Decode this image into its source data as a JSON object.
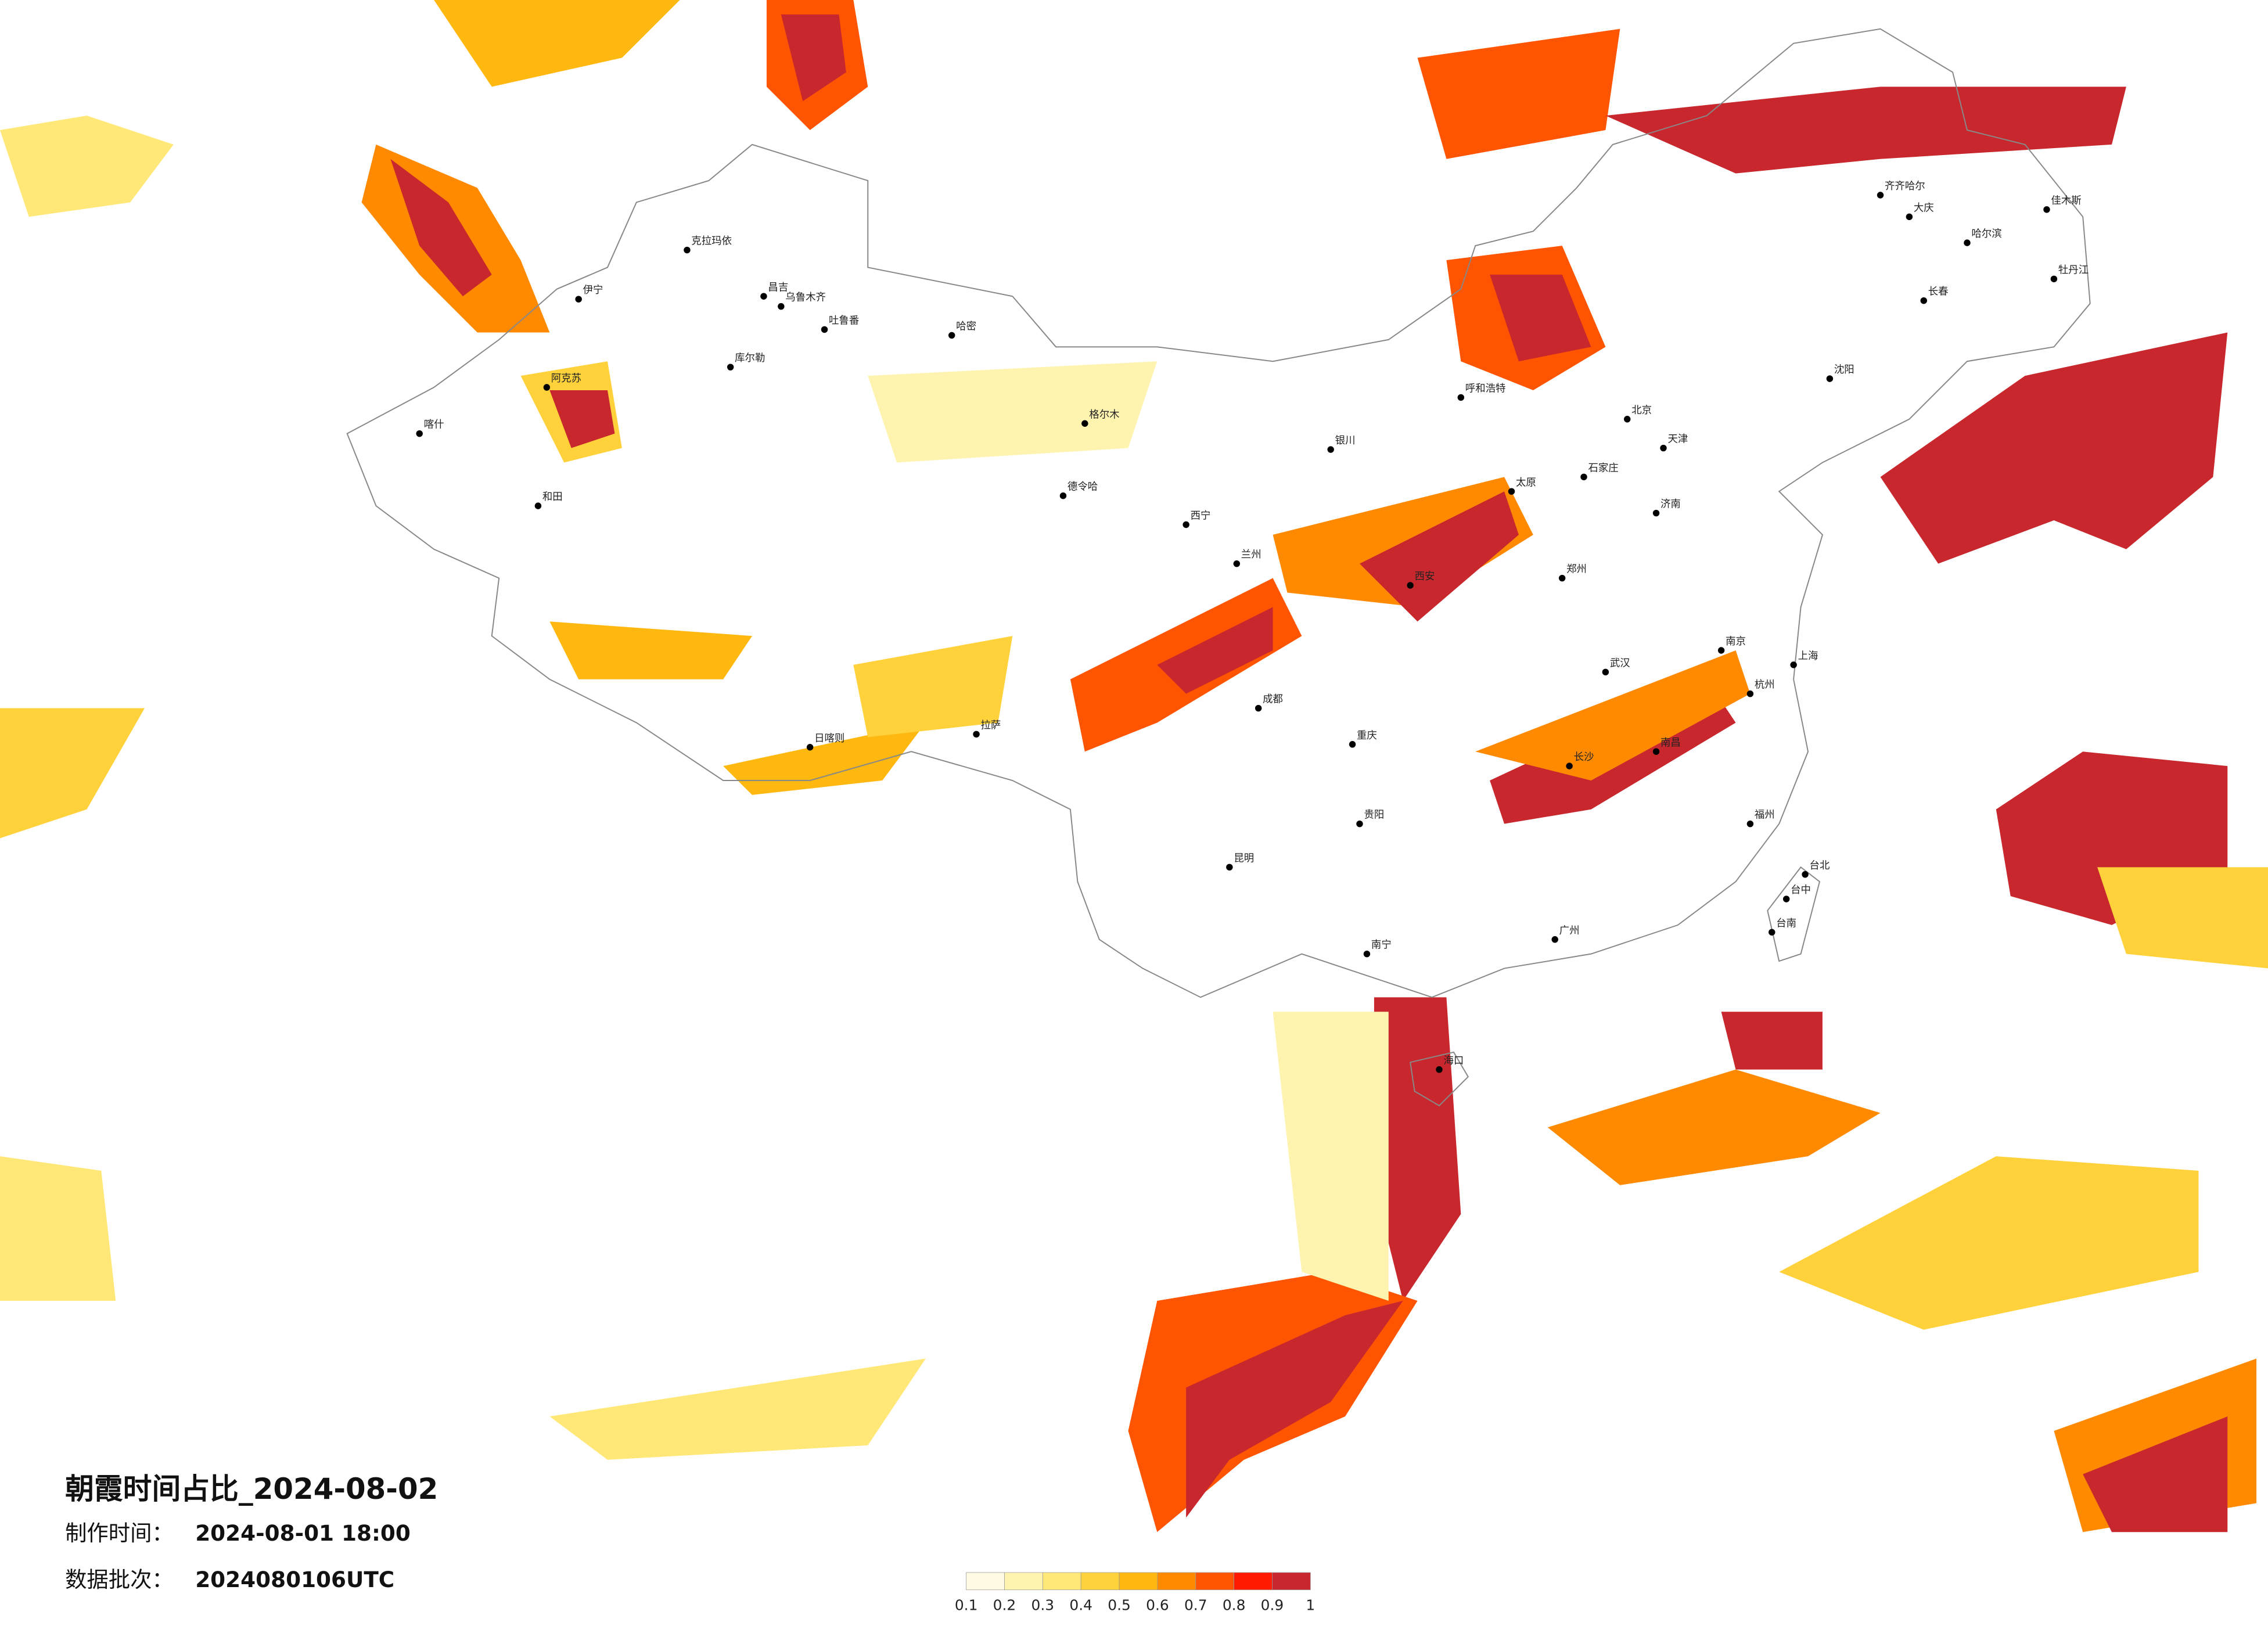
{
  "title": "朝霞时间占比_2024-08-02",
  "info": [
    {
      "label": "制作时间：",
      "value": "2024-08-01 18:00"
    },
    {
      "label": "数据批次：",
      "value": "2024080106UTC"
    }
  ],
  "legend": {
    "colors": [
      "#fffbe3",
      "#fff3b0",
      "#ffe878",
      "#ffd23c",
      "#ffb80f",
      "#ff8a00",
      "#ff5400",
      "#ff1a00",
      "#c8282d"
    ],
    "ticks": [
      0.1,
      0.2,
      0.3,
      0.4,
      0.5,
      0.6,
      0.7,
      0.8,
      0.9,
      1
    ]
  },
  "cities": [
    "伊宁",
    "克拉玛依",
    "昌吉",
    "乌鲁木齐",
    "吐鲁番",
    "哈密",
    "库尔勒",
    "阿克苏",
    "喀什",
    "和田",
    "格尔木",
    "德令哈",
    "日喀则",
    "拉萨",
    "西宁",
    "兰州",
    "银川",
    "呼和浩特",
    "北京",
    "天津",
    "石家庄",
    "太原",
    "西安",
    "郑州",
    "济南",
    "南京",
    "上海",
    "杭州",
    "武汉",
    "长沙",
    "南昌",
    "福州",
    "广州",
    "南宁",
    "贵阳",
    "昆明",
    "成都",
    "重庆",
    "哈尔滨",
    "长春",
    "沈阳",
    "大庆",
    "齐齐哈尔",
    "佳木斯",
    "牡丹江",
    "海口",
    "台北",
    "台中",
    "台南"
  ]
}
